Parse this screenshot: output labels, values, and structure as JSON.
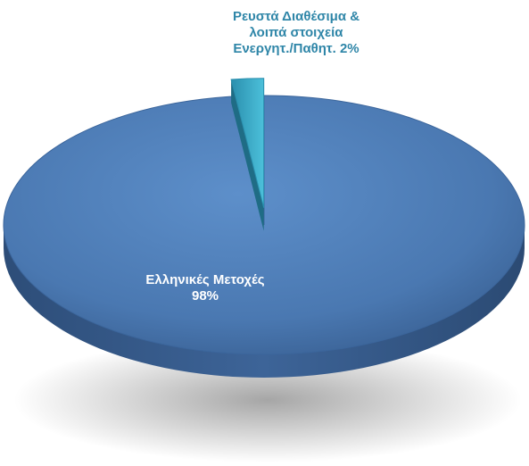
{
  "chart_data": {
    "type": "pie",
    "style": "3d-exploded",
    "slices": [
      {
        "label_lines": [
          "Ελληνικές Μετοχές",
          "98%"
        ],
        "value": 98,
        "color": "#4f7fb8"
      },
      {
        "label_lines": [
          "Ρευστά Διαθέσιμα &",
          "λοιπά στοιχεία",
          "Ενεργητ./Παθητ. 2%"
        ],
        "value": 2,
        "color": "#3ea9c6"
      }
    ]
  }
}
